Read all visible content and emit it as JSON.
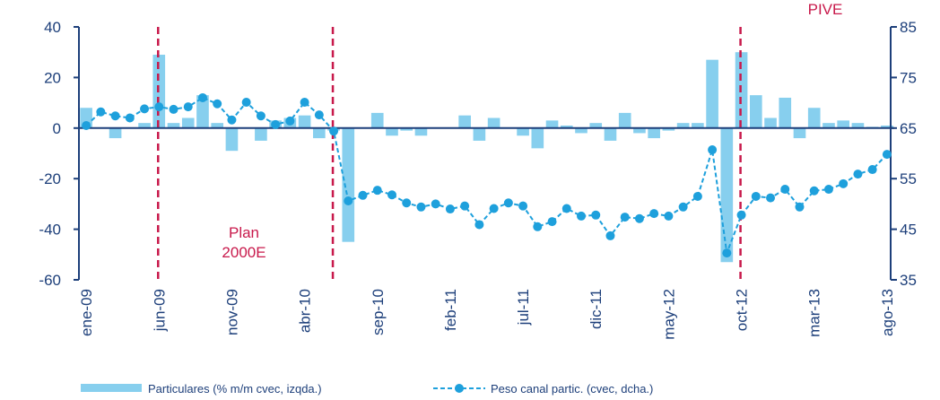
{
  "chart_data": {
    "type": "bar",
    "categories": [
      "ene-09",
      null,
      null,
      null,
      null,
      "jun-09",
      null,
      null,
      null,
      null,
      "nov-09",
      null,
      null,
      null,
      null,
      "abr-10",
      null,
      null,
      null,
      null,
      "sep-10",
      null,
      null,
      null,
      null,
      "feb-11",
      null,
      null,
      null,
      null,
      "jul-11",
      null,
      null,
      null,
      null,
      "dic-11",
      null,
      null,
      null,
      null,
      "may-12",
      null,
      null,
      null,
      null,
      "oct-12",
      null,
      null,
      null,
      null,
      "mar-13",
      null,
      null,
      null,
      null,
      "ago-13"
    ],
    "series": [
      {
        "name": "Particulares (% m/m cvec, izqda.)",
        "type": "bar",
        "color": "#87cfee",
        "values": [
          8,
          0,
          -4,
          0,
          2,
          29,
          2,
          4,
          13,
          2,
          -9,
          0,
          -5,
          3,
          4,
          5,
          -4,
          -1,
          -45,
          0,
          6,
          -3,
          -1,
          -3,
          0,
          0,
          5,
          -5,
          4,
          0,
          -3,
          -8,
          3,
          1,
          -2,
          2,
          -5,
          6,
          -2,
          -4,
          -1,
          2,
          2,
          27,
          -53,
          30,
          13,
          4,
          12,
          -4,
          8,
          2,
          3,
          2,
          0.5,
          1
        ]
      },
      {
        "name": "Peso canal partic. (cvec, dcha.)",
        "type": "line",
        "axis": "y2",
        "color": "#1ea0dc",
        "values": [
          65.5,
          68.2,
          67.4,
          67,
          68.8,
          69.2,
          68.7,
          69.2,
          71,
          69.8,
          66.6,
          70.1,
          67.4,
          65.7,
          66.4,
          70.1,
          67.6,
          64.4,
          50.6,
          51.7,
          52.7,
          51.8,
          50.2,
          49.4,
          50,
          49,
          49.6,
          45.9,
          49.1,
          50.2,
          49.6,
          45.5,
          46.5,
          49.1,
          47.6,
          47.8,
          43.7,
          47.4,
          47.1,
          48.1,
          47.6,
          49.4,
          51.5,
          60.7,
          40.3,
          47.8,
          51.5,
          51.2,
          52.9,
          49.4,
          52.6,
          52.9,
          54,
          55.9,
          56.8,
          59.8
        ]
      }
    ],
    "ylim": [
      -60,
      40
    ],
    "yticks": [
      -60,
      -40,
      -20,
      0,
      20,
      40
    ],
    "y2lim": [
      35,
      85
    ],
    "y2ticks": [
      35,
      45,
      55,
      65,
      75,
      85
    ],
    "annotations": [
      {
        "lines": [
          "Plan",
          "2000E"
        ]
      },
      {
        "lines": [
          "PIVE"
        ]
      }
    ]
  }
}
